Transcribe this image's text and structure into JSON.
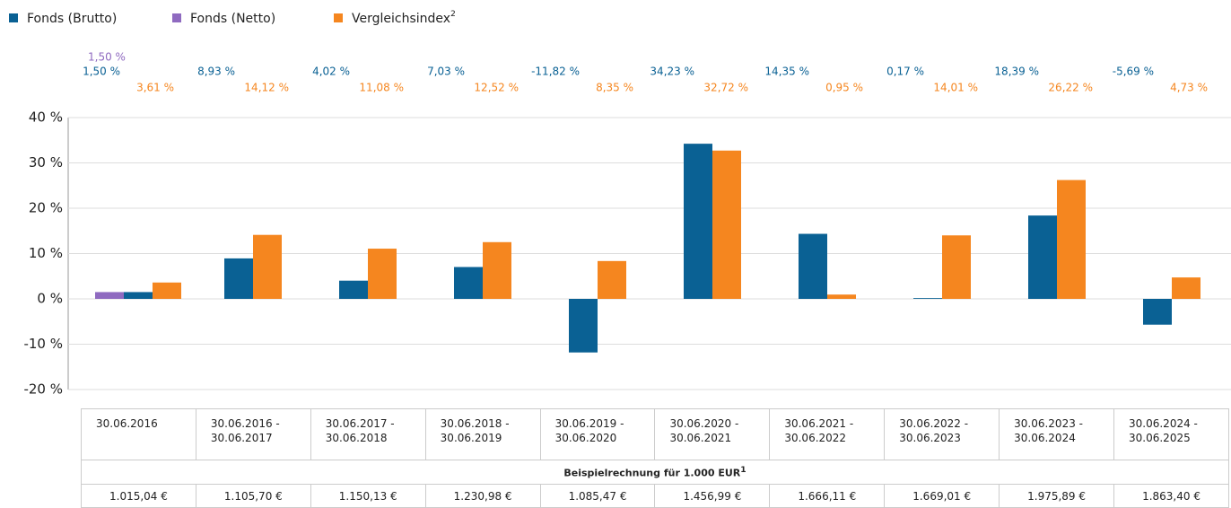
{
  "chart_data": {
    "type": "bar",
    "categories": [
      "30.06.2016",
      "30.06.2016 - 30.06.2017",
      "30.06.2017 - 30.06.2018",
      "30.06.2018 - 30.06.2019",
      "30.06.2019 - 30.06.2020",
      "30.06.2020 - 30.06.2021",
      "30.06.2021 - 30.06.2022",
      "30.06.2022 - 30.06.2023",
      "30.06.2023 - 30.06.2024",
      "30.06.2024 - 30.06.2025"
    ],
    "series": [
      {
        "name": "Fonds (Brutto)",
        "color": "#0a6194",
        "values": [
          1.5,
          8.93,
          4.02,
          7.03,
          -11.82,
          34.23,
          14.35,
          0.17,
          18.39,
          -5.69
        ],
        "value_labels": [
          "1,50 %",
          "8,93 %",
          "4,02 %",
          "7,03 %",
          "-11,82 %",
          "34,23 %",
          "14,35 %",
          "0,17 %",
          "18,39 %",
          "-5,69 %"
        ]
      },
      {
        "name": "Fonds (Netto)",
        "color": "#8f6ac0",
        "values": [
          1.5,
          null,
          null,
          null,
          null,
          null,
          null,
          null,
          null,
          null
        ],
        "value_labels": [
          "1,50 %",
          null,
          null,
          null,
          null,
          null,
          null,
          null,
          null,
          null
        ]
      },
      {
        "name": "Vergleichsindex",
        "name_sup": "2",
        "color": "#f5861f",
        "values": [
          3.61,
          14.12,
          11.08,
          12.52,
          8.35,
          32.72,
          0.95,
          14.01,
          26.22,
          4.73
        ],
        "value_labels": [
          "3,61 %",
          "14,12 %",
          "11,08 %",
          "12,52 %",
          "8,35 %",
          "32,72 %",
          "0,95 %",
          "14,01 %",
          "26,22 %",
          "4,73 %"
        ]
      }
    ],
    "ylim": [
      -20,
      40
    ],
    "yticks": [
      {
        "value": -20,
        "label": "-20 %"
      },
      {
        "value": -10,
        "label": "-10 %"
      },
      {
        "value": 0,
        "label": "0 %"
      },
      {
        "value": 10,
        "label": "10 %"
      },
      {
        "value": 20,
        "label": "20 %"
      },
      {
        "value": 30,
        "label": "30 %"
      },
      {
        "value": 40,
        "label": "40 %"
      }
    ],
    "grid": true,
    "legend": "top-left"
  },
  "table": {
    "heading": "Beispielrechnung für 1.000 EUR",
    "heading_sup": "1",
    "values": [
      "1.015,04 €",
      "1.105,70 €",
      "1.150,13 €",
      "1.230,98 €",
      "1.085,47 €",
      "1.456,99 €",
      "1.666,11 €",
      "1.669,01 €",
      "1.975,89 €",
      "1.863,40 €"
    ]
  }
}
